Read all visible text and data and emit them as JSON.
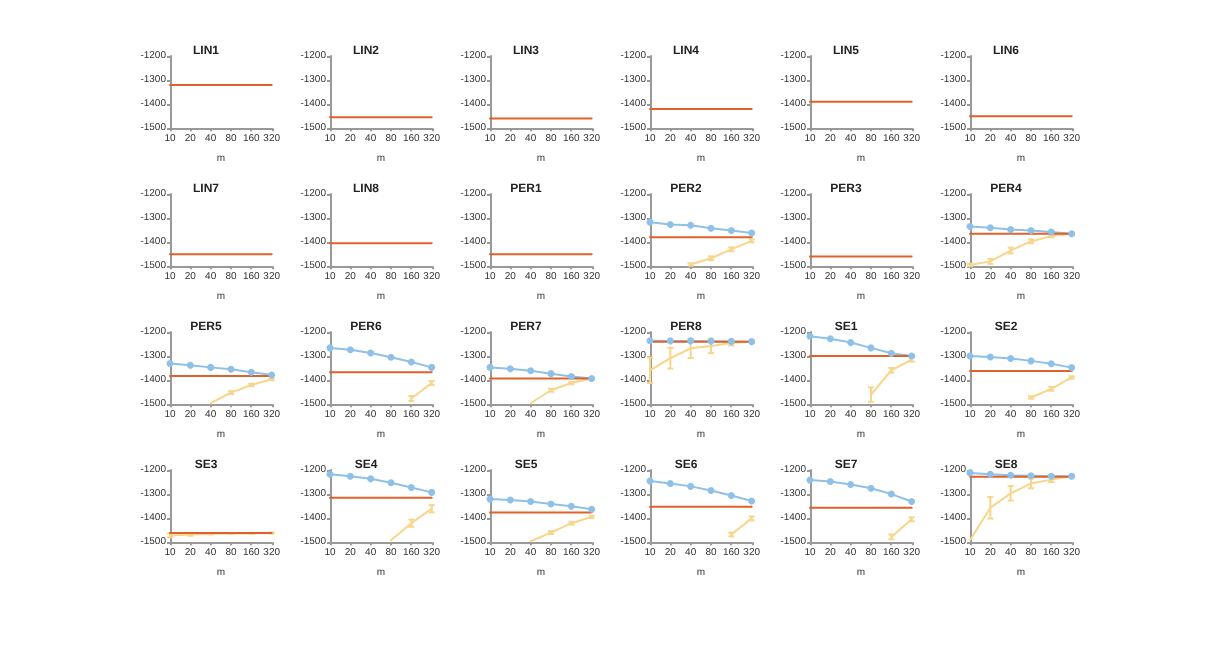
{
  "chart_data": [
    {
      "type": "line",
      "title": "LIN1",
      "xlabel": "m",
      "categories": [
        "10",
        "20",
        "40",
        "80",
        "160",
        "320"
      ],
      "ylim": [
        -1500,
        -1200
      ],
      "yticks": [
        -1500,
        -1400,
        -1300,
        -1200
      ],
      "grid": false,
      "series": [
        {
          "color": "#e0622a",
          "marker": "none",
          "values": [
            -1320,
            -1320,
            -1320,
            -1320,
            -1320,
            -1320
          ]
        }
      ]
    },
    {
      "type": "line",
      "title": "LIN2",
      "xlabel": "m",
      "categories": [
        "10",
        "20",
        "40",
        "80",
        "160",
        "320"
      ],
      "ylim": [
        -1500,
        -1200
      ],
      "yticks": [
        -1500,
        -1400,
        -1300,
        -1200
      ],
      "grid": false,
      "series": [
        {
          "color": "#e0622a",
          "marker": "none",
          "values": [
            -1455,
            -1455,
            -1455,
            -1455,
            -1455,
            -1455
          ]
        }
      ]
    },
    {
      "type": "line",
      "title": "LIN3",
      "xlabel": "m",
      "categories": [
        "10",
        "20",
        "40",
        "80",
        "160",
        "320"
      ],
      "ylim": [
        -1500,
        -1200
      ],
      "yticks": [
        -1500,
        -1400,
        -1300,
        -1200
      ],
      "grid": false,
      "series": [
        {
          "color": "#e0622a",
          "marker": "none",
          "values": [
            -1460,
            -1460,
            -1460,
            -1460,
            -1460,
            -1460
          ]
        }
      ]
    },
    {
      "type": "line",
      "title": "LIN4",
      "xlabel": "m",
      "categories": [
        "10",
        "20",
        "40",
        "80",
        "160",
        "320"
      ],
      "ylim": [
        -1500,
        -1200
      ],
      "yticks": [
        -1500,
        -1400,
        -1300,
        -1200
      ],
      "grid": false,
      "series": [
        {
          "color": "#e0622a",
          "marker": "none",
          "values": [
            -1420,
            -1420,
            -1420,
            -1420,
            -1420,
            -1420
          ]
        }
      ]
    },
    {
      "type": "line",
      "title": "LIN5",
      "xlabel": "m",
      "categories": [
        "10",
        "20",
        "40",
        "80",
        "160",
        "320"
      ],
      "ylim": [
        -1500,
        -1200
      ],
      "yticks": [
        -1500,
        -1400,
        -1300,
        -1200
      ],
      "grid": false,
      "series": [
        {
          "color": "#e0622a",
          "marker": "none",
          "values": [
            -1390,
            -1390,
            -1390,
            -1390,
            -1390,
            -1390
          ]
        }
      ]
    },
    {
      "type": "line",
      "title": "LIN6",
      "xlabel": "m",
      "categories": [
        "10",
        "20",
        "40",
        "80",
        "160",
        "320"
      ],
      "ylim": [
        -1500,
        -1200
      ],
      "yticks": [
        -1500,
        -1400,
        -1300,
        -1200
      ],
      "grid": false,
      "series": [
        {
          "color": "#e0622a",
          "marker": "none",
          "values": [
            -1450,
            -1450,
            -1450,
            -1450,
            -1450,
            -1450
          ]
        }
      ]
    },
    {
      "type": "line",
      "title": "LIN7",
      "xlabel": "m",
      "categories": [
        "10",
        "20",
        "40",
        "80",
        "160",
        "320"
      ],
      "ylim": [
        -1500,
        -1200
      ],
      "yticks": [
        -1500,
        -1400,
        -1300,
        -1200
      ],
      "grid": false,
      "series": [
        {
          "color": "#e0622a",
          "marker": "none",
          "values": [
            -1450,
            -1450,
            -1450,
            -1450,
            -1450,
            -1450
          ]
        }
      ]
    },
    {
      "type": "line",
      "title": "LIN8",
      "xlabel": "m",
      "categories": [
        "10",
        "20",
        "40",
        "80",
        "160",
        "320"
      ],
      "ylim": [
        -1500,
        -1200
      ],
      "yticks": [
        -1500,
        -1400,
        -1300,
        -1200
      ],
      "grid": false,
      "series": [
        {
          "color": "#e0622a",
          "marker": "none",
          "values": [
            -1405,
            -1405,
            -1405,
            -1405,
            -1405,
            -1405
          ]
        }
      ]
    },
    {
      "type": "line",
      "title": "PER1",
      "xlabel": "m",
      "categories": [
        "10",
        "20",
        "40",
        "80",
        "160",
        "320"
      ],
      "ylim": [
        -1500,
        -1200
      ],
      "yticks": [
        -1500,
        -1400,
        -1300,
        -1200
      ],
      "grid": false,
      "series": [
        {
          "color": "#e0622a",
          "marker": "none",
          "values": [
            -1450,
            -1450,
            -1450,
            -1450,
            -1450,
            -1450
          ]
        }
      ]
    },
    {
      "type": "line",
      "title": "PER2",
      "xlabel": "m",
      "categories": [
        "10",
        "20",
        "40",
        "80",
        "160",
        "320"
      ],
      "ylim": [
        -1500,
        -1200
      ],
      "yticks": [
        -1500,
        -1400,
        -1300,
        -1200
      ],
      "grid": false,
      "series": [
        {
          "color": "#8fc1e8",
          "marker": "circle",
          "values": [
            -1317,
            -1327,
            -1330,
            -1342,
            -1352,
            -1362
          ]
        },
        {
          "color": "#f7d58a",
          "marker": "none",
          "values": [
            null,
            null,
            -1493,
            -1467,
            -1430,
            -1395
          ],
          "errors": [
            null,
            null,
            5,
            8,
            8,
            6
          ]
        },
        {
          "color": "#e0622a",
          "marker": "none",
          "values": [
            -1380,
            -1380,
            -1380,
            -1380,
            -1380,
            -1380
          ]
        }
      ]
    },
    {
      "type": "line",
      "title": "PER3",
      "xlabel": "m",
      "categories": [
        "10",
        "20",
        "40",
        "80",
        "160",
        "320"
      ],
      "ylim": [
        -1500,
        -1200
      ],
      "yticks": [
        -1500,
        -1400,
        -1300,
        -1200
      ],
      "grid": false,
      "series": [
        {
          "color": "#e0622a",
          "marker": "none",
          "values": [
            -1460,
            -1460,
            -1460,
            -1460,
            -1460,
            -1460
          ]
        }
      ]
    },
    {
      "type": "line",
      "title": "PER4",
      "xlabel": "m",
      "categories": [
        "10",
        "20",
        "40",
        "80",
        "160",
        "320"
      ],
      "ylim": [
        -1500,
        -1200
      ],
      "yticks": [
        -1500,
        -1400,
        -1300,
        -1200
      ],
      "grid": false,
      "series": [
        {
          "color": "#8fc1e8",
          "marker": "circle",
          "values": [
            -1335,
            -1340,
            -1348,
            -1352,
            -1358,
            -1365
          ]
        },
        {
          "color": "#f7d58a",
          "marker": "none",
          "values": [
            -1495,
            -1480,
            -1435,
            -1397,
            -1375,
            -1365
          ],
          "errors": [
            5,
            10,
            12,
            8,
            5,
            3
          ]
        },
        {
          "color": "#e0622a",
          "marker": "none",
          "values": [
            -1365,
            -1365,
            -1365,
            -1365,
            -1365,
            -1365
          ]
        }
      ]
    },
    {
      "type": "line",
      "title": "PER5",
      "xlabel": "m",
      "categories": [
        "10",
        "20",
        "40",
        "80",
        "160",
        "320"
      ],
      "ylim": [
        -1500,
        -1200
      ],
      "yticks": [
        -1500,
        -1400,
        -1300,
        -1200
      ],
      "grid": false,
      "series": [
        {
          "color": "#8fc1e8",
          "marker": "circle",
          "values": [
            -1331,
            -1338,
            -1347,
            -1355,
            -1367,
            -1379
          ]
        },
        {
          "color": "#f7d58a",
          "marker": "none",
          "values": [
            null,
            null,
            -1496,
            -1452,
            -1420,
            -1396
          ],
          "errors": [
            null,
            null,
            null,
            6,
            5,
            4
          ]
        },
        {
          "color": "#e0622a",
          "marker": "none",
          "values": [
            -1383,
            -1383,
            -1383,
            -1383,
            -1383,
            -1383
          ]
        }
      ]
    },
    {
      "type": "line",
      "title": "PER6",
      "xlabel": "m",
      "categories": [
        "10",
        "20",
        "40",
        "80",
        "160",
        "320"
      ],
      "ylim": [
        -1500,
        -1200
      ],
      "yticks": [
        -1500,
        -1400,
        -1300,
        -1200
      ],
      "grid": false,
      "series": [
        {
          "color": "#8fc1e8",
          "marker": "circle",
          "values": [
            -1266,
            -1274,
            -1287,
            -1305,
            -1325,
            -1347
          ]
        },
        {
          "color": "#f7d58a",
          "marker": "none",
          "values": [
            null,
            null,
            null,
            null,
            -1476,
            -1412
          ],
          "errors": [
            null,
            null,
            null,
            null,
            10,
            8
          ]
        },
        {
          "color": "#e0622a",
          "marker": "none",
          "values": [
            -1367,
            -1367,
            -1367,
            -1367,
            -1367,
            -1367
          ]
        }
      ]
    },
    {
      "type": "line",
      "title": "PER7",
      "xlabel": "m",
      "categories": [
        "10",
        "20",
        "40",
        "80",
        "160",
        "320"
      ],
      "ylim": [
        -1500,
        -1200
      ],
      "yticks": [
        -1500,
        -1400,
        -1300,
        -1200
      ],
      "grid": false,
      "series": [
        {
          "color": "#8fc1e8",
          "marker": "circle",
          "values": [
            -1347,
            -1353,
            -1361,
            -1373,
            -1385,
            -1393
          ]
        },
        {
          "color": "#f7d58a",
          "marker": "none",
          "values": [
            null,
            null,
            -1496,
            -1442,
            -1412,
            -1393
          ],
          "errors": [
            null,
            null,
            null,
            6,
            5,
            3
          ]
        },
        {
          "color": "#e0622a",
          "marker": "none",
          "values": [
            -1393,
            -1393,
            -1393,
            -1393,
            -1393,
            -1393
          ]
        }
      ]
    },
    {
      "type": "line",
      "title": "PER8",
      "xlabel": "m",
      "categories": [
        "10",
        "20",
        "40",
        "80",
        "160",
        "320"
      ],
      "ylim": [
        -1500,
        -1200
      ],
      "yticks": [
        -1500,
        -1400,
        -1300,
        -1200
      ],
      "grid": false,
      "series": [
        {
          "color": "#8fc1e8",
          "marker": "circle",
          "values": [
            -1236,
            -1237,
            -1237,
            -1238,
            -1239,
            -1240
          ]
        },
        {
          "color": "#f7d58a",
          "marker": "none",
          "values": [
            -1359,
            -1309,
            -1268,
            -1258,
            -1246,
            -1240
          ],
          "errors": [
            53,
            43,
            40,
            30,
            10,
            3
          ]
        },
        {
          "color": "#e0622a",
          "marker": "none",
          "values": [
            -1240,
            -1240,
            -1240,
            -1240,
            -1240,
            -1240
          ]
        }
      ]
    },
    {
      "type": "line",
      "title": "SE1",
      "xlabel": "m",
      "categories": [
        "10",
        "20",
        "40",
        "80",
        "160",
        "320"
      ],
      "ylim": [
        -1500,
        -1200
      ],
      "yticks": [
        -1500,
        -1400,
        -1300,
        -1200
      ],
      "grid": false,
      "series": [
        {
          "color": "#8fc1e8",
          "marker": "circle",
          "values": [
            -1218,
            -1228,
            -1244,
            -1266,
            -1288,
            -1300
          ]
        },
        {
          "color": "#f7d58a",
          "marker": "none",
          "values": [
            null,
            null,
            null,
            -1460,
            -1359,
            -1315
          ],
          "errors": [
            null,
            null,
            null,
            30,
            10,
            8
          ]
        },
        {
          "color": "#e0622a",
          "marker": "none",
          "values": [
            -1300,
            -1300,
            -1300,
            -1300,
            -1300,
            -1300
          ]
        }
      ]
    },
    {
      "type": "line",
      "title": "SE2",
      "xlabel": "m",
      "categories": [
        "10",
        "20",
        "40",
        "80",
        "160",
        "320"
      ],
      "ylim": [
        -1500,
        -1200
      ],
      "yticks": [
        -1500,
        -1400,
        -1300,
        -1200
      ],
      "grid": false,
      "series": [
        {
          "color": "#8fc1e8",
          "marker": "circle",
          "values": [
            -1300,
            -1304,
            -1310,
            -1320,
            -1332,
            -1348
          ]
        },
        {
          "color": "#f7d58a",
          "marker": "none",
          "values": [
            null,
            null,
            null,
            -1472,
            -1436,
            -1389
          ],
          "errors": [
            null,
            null,
            null,
            5,
            8,
            5
          ]
        },
        {
          "color": "#e0622a",
          "marker": "none",
          "values": [
            -1362,
            -1362,
            -1362,
            -1362,
            -1362,
            -1362
          ]
        }
      ]
    },
    {
      "type": "line",
      "title": "SE3",
      "xlabel": "m",
      "categories": [
        "10",
        "20",
        "40",
        "80",
        "160",
        "320"
      ],
      "ylim": [
        -1500,
        -1200
      ],
      "yticks": [
        -1500,
        -1400,
        -1300,
        -1200
      ],
      "grid": false,
      "series": [
        {
          "color": "#f7d58a",
          "marker": "none",
          "values": [
            -1472,
            -1468,
            -1465,
            -1464,
            -1463,
            -1462
          ],
          "errors": [
            8,
            5,
            3,
            2,
            2,
            2
          ]
        },
        {
          "color": "#e0622a",
          "marker": "none",
          "values": [
            -1462,
            -1462,
            -1462,
            -1462,
            -1462,
            -1462
          ]
        }
      ]
    },
    {
      "type": "line",
      "title": "SE4",
      "xlabel": "m",
      "categories": [
        "10",
        "20",
        "40",
        "80",
        "160",
        "320"
      ],
      "ylim": [
        -1500,
        -1200
      ],
      "yticks": [
        -1500,
        -1400,
        -1300,
        -1200
      ],
      "grid": false,
      "series": [
        {
          "color": "#8fc1e8",
          "marker": "circle",
          "values": [
            -1218,
            -1226,
            -1236,
            -1253,
            -1273,
            -1293
          ]
        },
        {
          "color": "#f7d58a",
          "marker": "none",
          "values": [
            null,
            null,
            null,
            -1492,
            -1421,
            -1361
          ],
          "errors": [
            null,
            null,
            null,
            null,
            15,
            15
          ]
        },
        {
          "color": "#e0622a",
          "marker": "none",
          "values": [
            -1315,
            -1315,
            -1315,
            -1315,
            -1315,
            -1315
          ]
        }
      ]
    },
    {
      "type": "line",
      "title": "SE5",
      "xlabel": "m",
      "categories": [
        "10",
        "20",
        "40",
        "80",
        "160",
        "320"
      ],
      "ylim": [
        -1500,
        -1200
      ],
      "yticks": [
        -1500,
        -1400,
        -1300,
        -1200
      ],
      "grid": false,
      "series": [
        {
          "color": "#8fc1e8",
          "marker": "circle",
          "values": [
            -1321,
            -1325,
            -1331,
            -1341,
            -1351,
            -1363
          ]
        },
        {
          "color": "#f7d58a",
          "marker": "none",
          "values": [
            null,
            null,
            -1496,
            -1460,
            -1421,
            -1395
          ],
          "errors": [
            null,
            null,
            null,
            6,
            6,
            5
          ]
        },
        {
          "color": "#e0622a",
          "marker": "none",
          "values": [
            -1377,
            -1377,
            -1377,
            -1377,
            -1377,
            -1377
          ]
        }
      ]
    },
    {
      "type": "line",
      "title": "SE6",
      "xlabel": "m",
      "categories": [
        "10",
        "20",
        "40",
        "80",
        "160",
        "320"
      ],
      "ylim": [
        -1500,
        -1200
      ],
      "yticks": [
        -1500,
        -1400,
        -1300,
        -1200
      ],
      "grid": false,
      "series": [
        {
          "color": "#8fc1e8",
          "marker": "circle",
          "values": [
            -1246,
            -1256,
            -1268,
            -1285,
            -1306,
            -1329
          ]
        },
        {
          "color": "#f7d58a",
          "marker": "none",
          "values": [
            null,
            null,
            null,
            null,
            -1468,
            -1401
          ],
          "errors": [
            null,
            null,
            null,
            null,
            8,
            8
          ]
        },
        {
          "color": "#e0622a",
          "marker": "none",
          "values": [
            -1353,
            -1353,
            -1353,
            -1353,
            -1353,
            -1353
          ]
        }
      ]
    },
    {
      "type": "line",
      "title": "SE7",
      "xlabel": "m",
      "categories": [
        "10",
        "20",
        "40",
        "80",
        "160",
        "320"
      ],
      "ylim": [
        -1500,
        -1200
      ],
      "yticks": [
        -1500,
        -1400,
        -1300,
        -1200
      ],
      "grid": false,
      "series": [
        {
          "color": "#8fc1e8",
          "marker": "circle",
          "values": [
            -1242,
            -1248,
            -1260,
            -1276,
            -1300,
            -1331
          ]
        },
        {
          "color": "#f7d58a",
          "marker": "none",
          "values": [
            null,
            null,
            null,
            null,
            -1478,
            -1405
          ],
          "errors": [
            null,
            null,
            null,
            null,
            10,
            8
          ]
        },
        {
          "color": "#e0622a",
          "marker": "none",
          "values": [
            -1357,
            -1357,
            -1357,
            -1357,
            -1357,
            -1357
          ]
        }
      ]
    },
    {
      "type": "line",
      "title": "SE8",
      "xlabel": "m",
      "categories": [
        "10",
        "20",
        "40",
        "80",
        "160",
        "320"
      ],
      "ylim": [
        -1500,
        -1200
      ],
      "yticks": [
        -1500,
        -1400,
        -1300,
        -1200
      ],
      "grid": false,
      "series": [
        {
          "color": "#8fc1e8",
          "marker": "circle",
          "values": [
            -1212,
            -1218,
            -1222,
            -1224,
            -1226,
            -1226
          ]
        },
        {
          "color": "#f7d58a",
          "marker": "none",
          "values": [
            -1492,
            -1357,
            -1297,
            -1256,
            -1240,
            -1226
          ],
          "errors": [
            null,
            45,
            30,
            20,
            10,
            3
          ]
        },
        {
          "color": "#e0622a",
          "marker": "none",
          "values": [
            -1228,
            -1228,
            -1228,
            -1228,
            -1228,
            -1228
          ]
        }
      ]
    }
  ]
}
